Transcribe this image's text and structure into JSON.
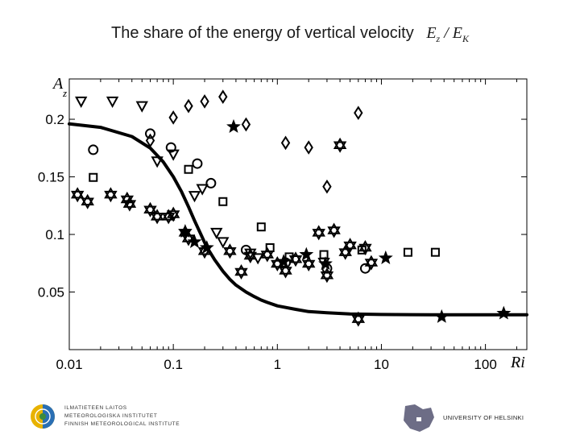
{
  "slide": {
    "title": "The share of the energy of vertical velocity",
    "formula_num": "E",
    "formula_num_sub": "z",
    "formula_sep": " / ",
    "formula_den": "E",
    "formula_den_sub": "K"
  },
  "footer": {
    "left_logo_lines": [
      "ILMATIETEEN LAITOS",
      "METEOROLOGISKA INSTITUTET",
      "FINNISH METEOROLOGICAL INSTITUTE"
    ],
    "right_logo_text": "UNIVERSITY OF HELSINKI"
  },
  "chart_data": {
    "type": "scatter",
    "xscale": "log",
    "xlim": [
      0.01,
      250
    ],
    "ylim": [
      0,
      0.235
    ],
    "xticks": [
      0.01,
      0.1,
      1,
      10,
      100
    ],
    "xtick_labels": [
      "0.01",
      "0.1",
      "1",
      "10",
      "100"
    ],
    "yticks": [
      0.05,
      0.1,
      0.15,
      0.2
    ],
    "ytick_labels": [
      "0.05",
      "0.1",
      "0.15",
      "0.2"
    ],
    "xlabel": "Ri",
    "ylabel": "A",
    "ylabel_sub": "z",
    "curve": {
      "name": "fit",
      "x": [
        0.01,
        0.02,
        0.04,
        0.06,
        0.08,
        0.1,
        0.12,
        0.14,
        0.16,
        0.18,
        0.2,
        0.22,
        0.25,
        0.3,
        0.35,
        0.4,
        0.5,
        0.6,
        0.7,
        0.8,
        1,
        1.5,
        2,
        3,
        5,
        10,
        30,
        100,
        250
      ],
      "y": [
        0.196,
        0.193,
        0.185,
        0.175,
        0.163,
        0.15,
        0.137,
        0.124,
        0.112,
        0.102,
        0.093,
        0.086,
        0.078,
        0.068,
        0.061,
        0.056,
        0.05,
        0.046,
        0.043,
        0.041,
        0.038,
        0.035,
        0.033,
        0.032,
        0.031,
        0.0305,
        0.0303,
        0.0302,
        0.0302
      ]
    },
    "series": [
      {
        "name": "triangles",
        "marker": "triangle-down",
        "x": [
          0.013,
          0.026,
          0.05,
          0.07,
          0.1,
          0.16,
          0.19,
          0.26,
          0.3,
          0.55,
          0.65,
          2.8
        ],
        "y": [
          0.2155,
          0.2155,
          0.2115,
          0.1635,
          0.1695,
          0.1335,
          0.1395,
          0.1015,
          0.0935,
          0.0835,
          0.0795,
          0.0755
        ]
      },
      {
        "name": "circles",
        "marker": "circle",
        "x": [
          0.017,
          0.06,
          0.095,
          0.17,
          0.23,
          0.5,
          1.2,
          3,
          7
        ],
        "y": [
          0.1735,
          0.1875,
          0.1755,
          0.1615,
          0.1445,
          0.0865,
          0.0755,
          0.0705,
          0.0705
        ]
      },
      {
        "name": "diamonds",
        "marker": "diamond",
        "x": [
          0.06,
          0.1,
          0.14,
          0.2,
          0.3,
          0.5,
          1.2,
          2,
          3,
          6
        ],
        "y": [
          0.1815,
          0.2015,
          0.2115,
          0.2155,
          0.2195,
          0.1955,
          0.1795,
          0.1755,
          0.1415,
          0.2055
        ]
      },
      {
        "name": "squares",
        "marker": "square",
        "x": [
          0.017,
          0.14,
          0.3,
          0.7,
          0.85,
          1.3,
          2.8,
          6.5,
          18,
          33
        ],
        "y": [
          0.1495,
          0.1565,
          0.1285,
          0.1065,
          0.0885,
          0.0805,
          0.0825,
          0.0865,
          0.0845,
          0.0845
        ]
      },
      {
        "name": "hexagrams",
        "marker": "hexagram",
        "x": [
          0.012,
          0.015,
          0.025,
          0.036,
          0.038,
          0.06,
          0.07,
          0.09,
          0.1,
          0.13,
          0.14,
          0.2,
          0.35,
          0.45,
          0.55,
          0.8,
          1.0,
          1.2,
          1.5,
          2.0,
          2.5,
          3.0,
          3.5,
          4.0,
          4.5,
          5.0,
          6.0,
          7.0,
          8.0
        ],
        "y": [
          0.1345,
          0.1285,
          0.1345,
          0.1305,
          0.1265,
          0.1215,
          0.1155,
          0.1155,
          0.1175,
          0.1015,
          0.0965,
          0.0855,
          0.0855,
          0.0675,
          0.0815,
          0.0825,
          0.0745,
          0.0685,
          0.0785,
          0.0745,
          0.1015,
          0.0645,
          0.1035,
          0.1775,
          0.0845,
          0.0905,
          0.0265,
          0.0885,
          0.0755
        ]
      },
      {
        "name": "stars",
        "marker": "star",
        "x": [
          0.13,
          0.16,
          0.21,
          0.38,
          1.15,
          1.9,
          2.9,
          11,
          38,
          150
        ],
        "y": [
          0.1025,
          0.0935,
          0.0885,
          0.1935,
          0.0765,
          0.0825,
          0.0745,
          0.0795,
          0.0285,
          0.0315
        ]
      }
    ]
  }
}
